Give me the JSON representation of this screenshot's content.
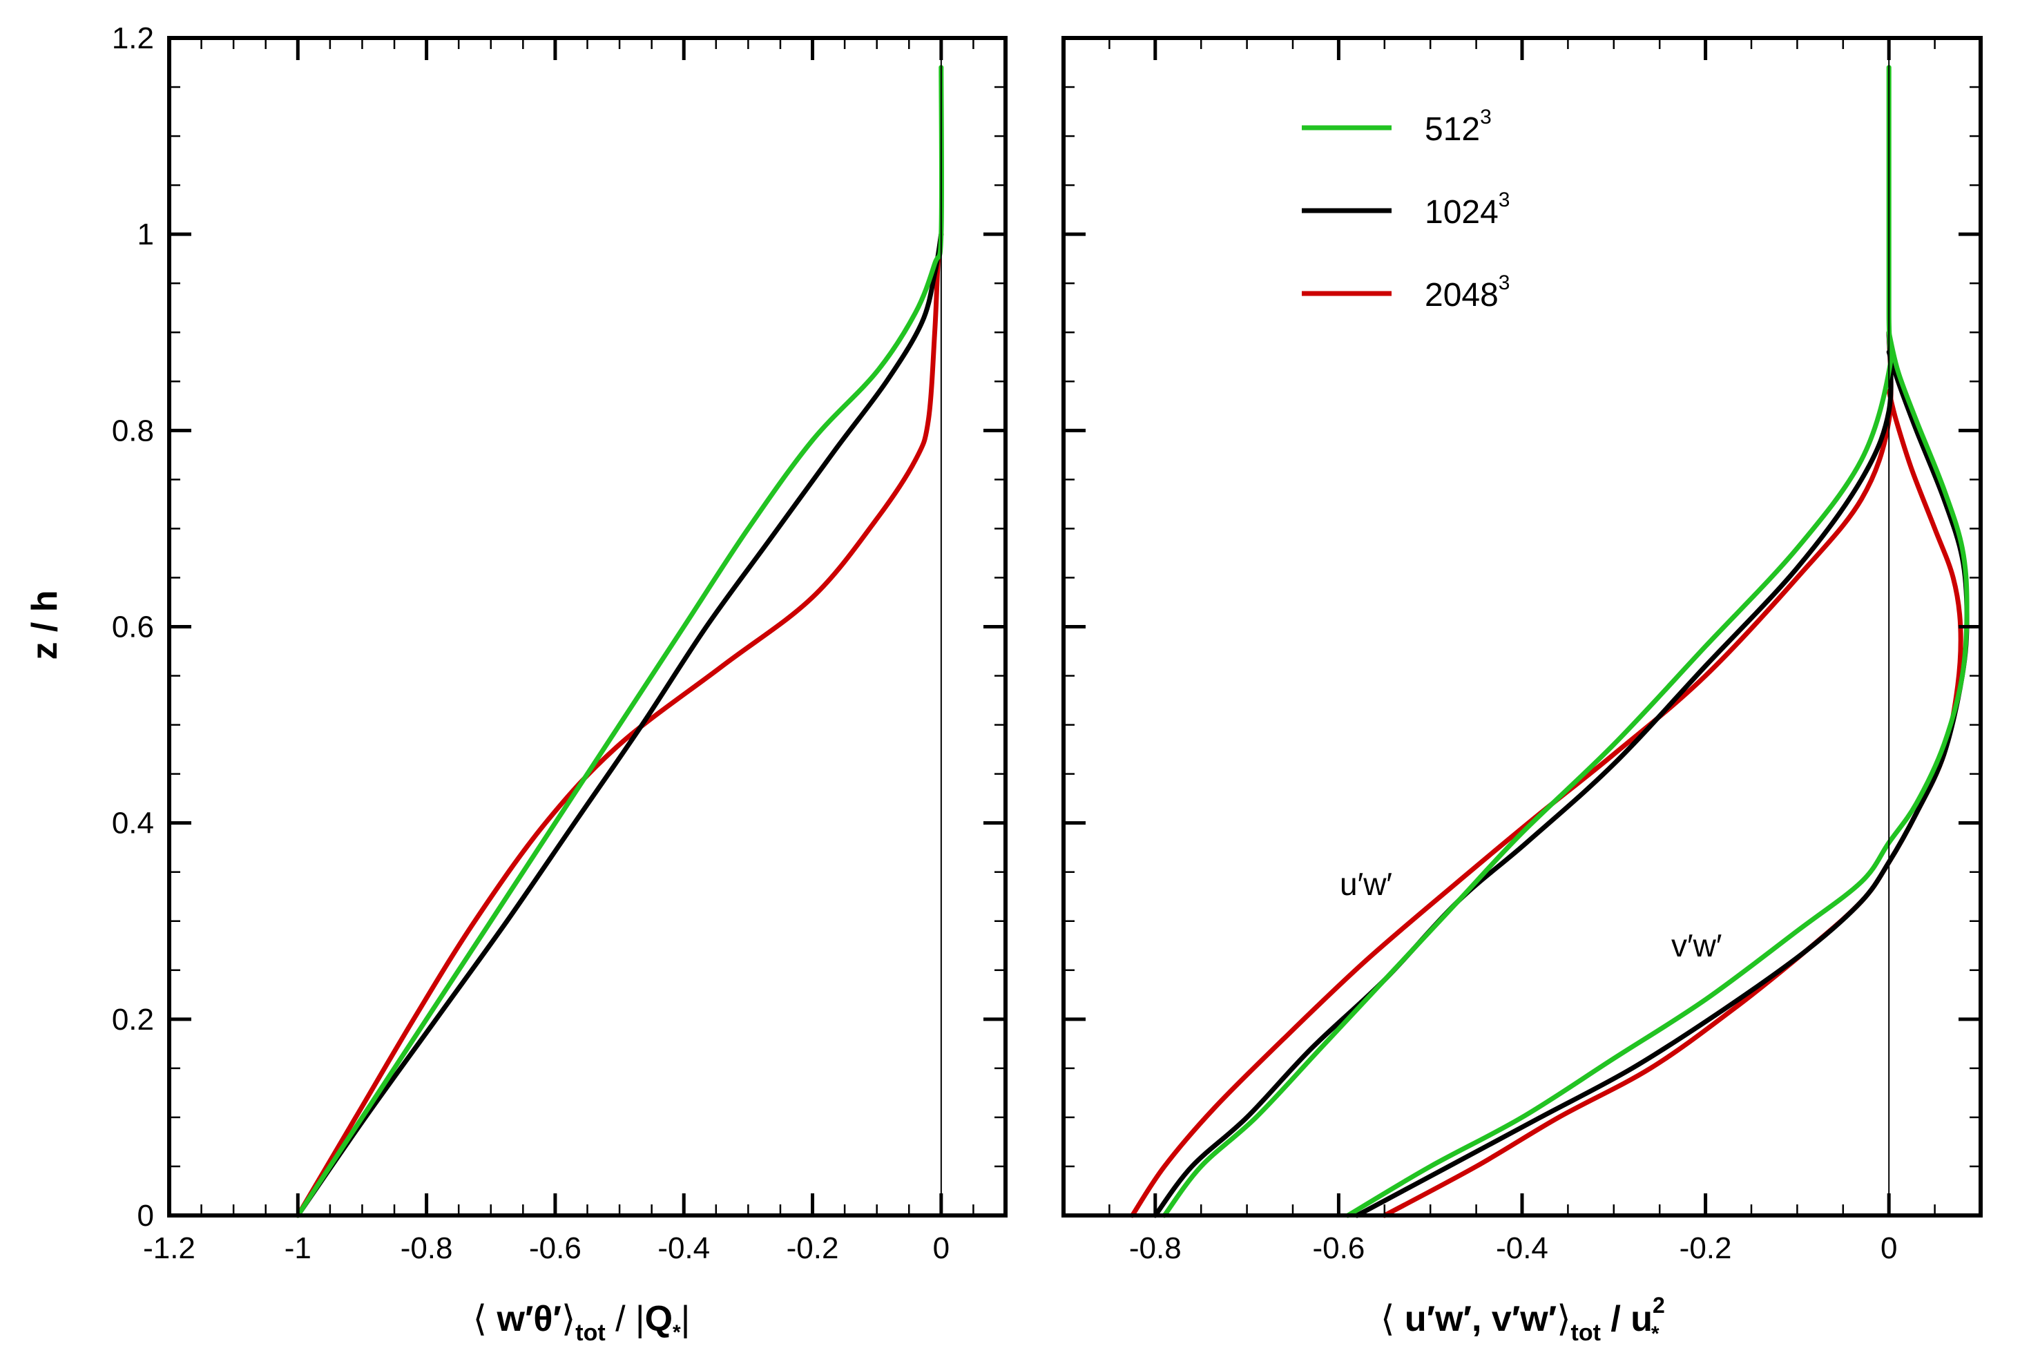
{
  "chart_data": [
    {
      "type": "line",
      "panel": "left",
      "xlabel": {
        "open": "⟨ ",
        "main": "w′θ′",
        "close": "⟩",
        "sub": "tot",
        "rest": " / |",
        "q": "Q",
        "star": "*",
        "end": "|"
      },
      "ylabel": "z / h",
      "xlim": [
        -1.2,
        0.1
      ],
      "ylim": [
        0,
        1.2
      ],
      "xticks": [
        "-1.2",
        "-1",
        "-0.8",
        "-0.6",
        "-0.4",
        "-0.2",
        "0"
      ],
      "xtick_values": [
        -1.2,
        -1,
        -0.8,
        -0.6,
        -0.4,
        -0.2,
        0
      ],
      "yticks": [
        "0",
        "0.2",
        "0.4",
        "0.6",
        "0.8",
        "1",
        "1.2"
      ],
      "ytick_values": [
        0,
        0.2,
        0.4,
        0.6,
        0.8,
        1.0,
        1.2
      ],
      "series": [
        {
          "name": "512³",
          "color": "#22c322",
          "points": [
            [
              -1,
              0
            ],
            [
              -0.9,
              0.1
            ],
            [
              -0.8,
              0.2
            ],
            [
              -0.7,
              0.3
            ],
            [
              -0.6,
              0.4
            ],
            [
              -0.5,
              0.5
            ],
            [
              -0.4,
              0.6
            ],
            [
              -0.3,
              0.7
            ],
            [
              -0.2,
              0.79
            ],
            [
              -0.1,
              0.86
            ],
            [
              -0.04,
              0.92
            ],
            [
              -0.01,
              0.97
            ],
            [
              0,
              1.0
            ],
            [
              0,
              1.17
            ]
          ]
        },
        {
          "name": "1024³",
          "color": "#000000",
          "points": [
            [
              -1,
              0
            ],
            [
              -0.895,
              0.1
            ],
            [
              -0.785,
              0.2
            ],
            [
              -0.675,
              0.3
            ],
            [
              -0.57,
              0.4
            ],
            [
              -0.465,
              0.5
            ],
            [
              -0.365,
              0.6
            ],
            [
              -0.265,
              0.69
            ],
            [
              -0.165,
              0.78
            ],
            [
              -0.085,
              0.85
            ],
            [
              -0.03,
              0.91
            ],
            [
              -0.01,
              0.96
            ],
            [
              0,
              1.0
            ]
          ]
        },
        {
          "name": "2048³",
          "color": "#cc0000",
          "points": [
            [
              -1,
              0
            ],
            [
              -0.91,
              0.1
            ],
            [
              -0.82,
              0.2
            ],
            [
              -0.725,
              0.3
            ],
            [
              -0.615,
              0.4
            ],
            [
              -0.5,
              0.48
            ],
            [
              -0.34,
              0.56
            ],
            [
              -0.2,
              0.63
            ],
            [
              -0.1,
              0.71
            ],
            [
              -0.04,
              0.77
            ],
            [
              -0.02,
              0.81
            ],
            [
              -0.01,
              0.9
            ],
            [
              -0.005,
              0.97
            ],
            [
              0,
              1.0
            ]
          ]
        }
      ]
    },
    {
      "type": "line",
      "panel": "right",
      "xlabel": {
        "open": "⟨ ",
        "main": "u′w′, v′w′",
        "close": "⟩",
        "sub": "tot",
        "rest": " / u",
        "sup": "2",
        "star": "*"
      },
      "xlim": [
        -0.9,
        0.1
      ],
      "ylim": [
        0,
        1.2
      ],
      "xticks": [
        "-0.8",
        "-0.6",
        "-0.4",
        "-0.2",
        "0"
      ],
      "xtick_values": [
        -0.8,
        -0.6,
        -0.4,
        -0.2,
        0
      ],
      "annotations": [
        {
          "text": "u′w′",
          "x": -0.59,
          "y": 0.33
        },
        {
          "text": "v′w′",
          "x": -0.2,
          "y": 0.27
        }
      ],
      "series": [
        {
          "name": "512³ u′w′",
          "color": "#22c322",
          "points": [
            [
              -0.79,
              0
            ],
            [
              -0.75,
              0.05
            ],
            [
              -0.69,
              0.1
            ],
            [
              -0.62,
              0.17
            ],
            [
              -0.55,
              0.24
            ],
            [
              -0.47,
              0.32
            ],
            [
              -0.4,
              0.39
            ],
            [
              -0.3,
              0.48
            ],
            [
              -0.2,
              0.58
            ],
            [
              -0.1,
              0.68
            ],
            [
              -0.03,
              0.77
            ],
            [
              0,
              0.86
            ],
            [
              0,
              0.92
            ],
            [
              0,
              1.17
            ]
          ]
        },
        {
          "name": "1024³ u′w′",
          "color": "#000000",
          "points": [
            [
              -0.8,
              0
            ],
            [
              -0.76,
              0.05
            ],
            [
              -0.7,
              0.1
            ],
            [
              -0.63,
              0.17
            ],
            [
              -0.55,
              0.24
            ],
            [
              -0.47,
              0.32
            ],
            [
              -0.395,
              0.38
            ],
            [
              -0.3,
              0.46
            ],
            [
              -0.2,
              0.56
            ],
            [
              -0.1,
              0.66
            ],
            [
              -0.03,
              0.75
            ],
            [
              0,
              0.82
            ],
            [
              0,
              0.9
            ]
          ]
        },
        {
          "name": "2048³ u′w′",
          "color": "#cc0000",
          "points": [
            [
              -0.825,
              0
            ],
            [
              -0.79,
              0.05
            ],
            [
              -0.735,
              0.11
            ],
            [
              -0.66,
              0.18
            ],
            [
              -0.57,
              0.26
            ],
            [
              -0.47,
              0.34
            ],
            [
              -0.38,
              0.41
            ],
            [
              -0.3,
              0.47
            ],
            [
              -0.2,
              0.55
            ],
            [
              -0.1,
              0.65
            ],
            [
              -0.03,
              0.73
            ],
            [
              0,
              0.81
            ],
            [
              0,
              0.9
            ]
          ]
        },
        {
          "name": "512³ v′w′",
          "color": "#22c322",
          "points": [
            [
              -0.59,
              0
            ],
            [
              -0.5,
              0.05
            ],
            [
              -0.4,
              0.1
            ],
            [
              -0.3,
              0.16
            ],
            [
              -0.2,
              0.22
            ],
            [
              -0.1,
              0.29
            ],
            [
              -0.03,
              0.34
            ],
            [
              0,
              0.38
            ],
            [
              0.03,
              0.42
            ],
            [
              0.06,
              0.48
            ],
            [
              0.08,
              0.55
            ],
            [
              0.085,
              0.62
            ],
            [
              0.08,
              0.68
            ],
            [
              0.06,
              0.74
            ],
            [
              0.03,
              0.81
            ],
            [
              0.01,
              0.86
            ],
            [
              0,
              0.9
            ]
          ]
        },
        {
          "name": "1024³ v′w′",
          "color": "#000000",
          "points": [
            [
              -0.58,
              0
            ],
            [
              -0.48,
              0.05
            ],
            [
              -0.38,
              0.1
            ],
            [
              -0.28,
              0.15
            ],
            [
              -0.18,
              0.21
            ],
            [
              -0.09,
              0.27
            ],
            [
              -0.03,
              0.32
            ],
            [
              0,
              0.36
            ],
            [
              0.03,
              0.41
            ],
            [
              0.06,
              0.47
            ],
            [
              0.08,
              0.55
            ],
            [
              0.085,
              0.61
            ],
            [
              0.08,
              0.67
            ],
            [
              0.06,
              0.73
            ],
            [
              0.03,
              0.8
            ],
            [
              0.01,
              0.85
            ],
            [
              0,
              0.88
            ]
          ]
        },
        {
          "name": "2048³ v′w′",
          "color": "#cc0000",
          "points": [
            [
              -0.55,
              0
            ],
            [
              -0.45,
              0.05
            ],
            [
              -0.36,
              0.1
            ],
            [
              -0.26,
              0.15
            ],
            [
              -0.17,
              0.21
            ],
            [
              -0.09,
              0.27
            ],
            [
              -0.03,
              0.32
            ],
            [
              0,
              0.36
            ],
            [
              0.03,
              0.41
            ],
            [
              0.06,
              0.47
            ],
            [
              0.075,
              0.54
            ],
            [
              0.078,
              0.6
            ],
            [
              0.07,
              0.65
            ],
            [
              0.05,
              0.7
            ],
            [
              0.025,
              0.76
            ],
            [
              0.008,
              0.81
            ],
            [
              0,
              0.84
            ]
          ]
        }
      ],
      "legend": [
        {
          "label": "512",
          "sup": "3",
          "color": "#22c322"
        },
        {
          "label": "1024",
          "sup": "3",
          "color": "#000000"
        },
        {
          "label": "2048",
          "sup": "3",
          "color": "#cc0000"
        }
      ],
      "legend_position": "top-center"
    }
  ]
}
